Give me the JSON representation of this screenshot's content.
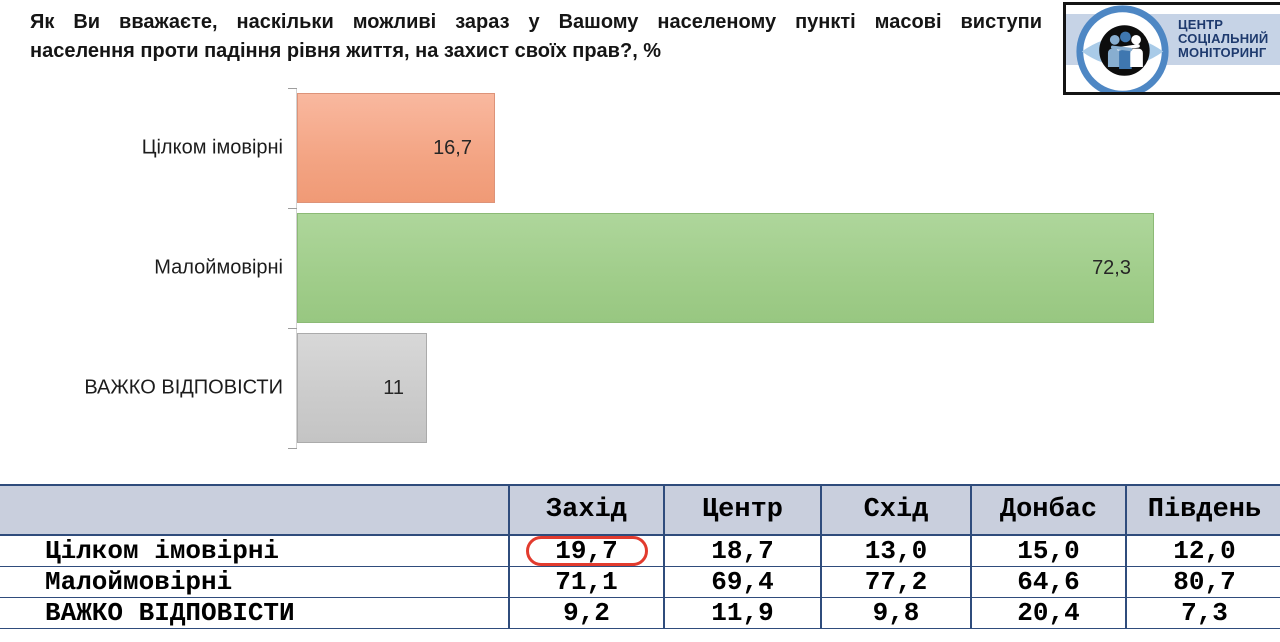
{
  "header": {
    "title_line1": "Як Ви вважаєте, наскільки можливі зараз у Вашому населеному пункті масові виступи",
    "title_line2": "населення проти падіння рівня життя, на захист своїх прав?, %"
  },
  "logo": {
    "line1": "ЦЕНТР",
    "line2": "СОЦІАЛЬНИЙ",
    "line3": "МОНІТОРИНГ",
    "ring_color": "#4e87c4",
    "lens_color": "#a9cbe8",
    "band_color": "#c6d3e6",
    "text_color": "#1e3a6e"
  },
  "chart_data": {
    "type": "bar",
    "orientation": "horizontal",
    "categories": [
      "Цілком імовірні",
      "Малоймовірні",
      "ВАЖКО ВІДПОВІСТИ"
    ],
    "values": [
      16.7,
      72.3,
      11
    ],
    "value_labels": [
      "16,7",
      "72,3",
      "11"
    ],
    "bar_colors": [
      "#f3a686",
      "#a2cf8d",
      "#cccccc"
    ],
    "xlim": [
      0,
      81
    ],
    "unit": "%",
    "grid": false,
    "legend": "none",
    "value_label_position": "inside-end"
  },
  "table": {
    "columns": [
      "",
      "Захід",
      "Центр",
      "Схід",
      "Донбас",
      "Південь"
    ],
    "rows": [
      {
        "label": "Цілком імовірні",
        "values": [
          "19,7",
          "18,7",
          "13,0",
          "15,0",
          "12,0"
        ]
      },
      {
        "label": "Малоймовірні",
        "values": [
          "71,1",
          "69,4",
          "77,2",
          "64,6",
          "80,7"
        ]
      },
      {
        "label": "ВАЖКО ВІДПОВІСТИ",
        "values": [
          "9,2",
          "11,9",
          "9,8",
          "20,4",
          "7,3"
        ]
      }
    ],
    "highlight": {
      "row": 0,
      "col": 0,
      "color": "#e23b2e"
    },
    "header_bg": "#c9cfdd",
    "border_color": "#2f4c7c"
  }
}
